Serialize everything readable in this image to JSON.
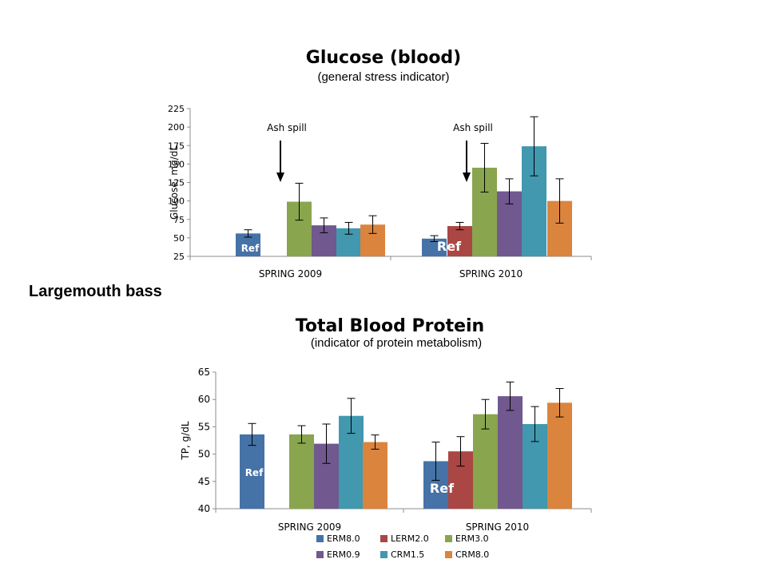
{
  "species_label": "Largemouth bass",
  "colors": {
    "ERM8.0": "#4572a7",
    "LERM2.0": "#aa4643",
    "ERM3.0": "#89a54e",
    "ERM0.9": "#71588f",
    "CRM1.5": "#4198af",
    "CRM8.0": "#db843d"
  },
  "chart_data": [
    {
      "type": "bar",
      "title": "Glucose (blood)",
      "subtitle": "(general stress indicator)",
      "ylabel": "Glucose, mg/dL",
      "xlabel": "",
      "ylim": [
        25,
        225
      ],
      "yticks": [
        25,
        50,
        75,
        100,
        125,
        150,
        175,
        200,
        225
      ],
      "grid": false,
      "categories": [
        "SPRING 2009",
        "SPRING 2010"
      ],
      "series": [
        {
          "name": "ERM8.0",
          "values": [
            56,
            49
          ],
          "errors": [
            5,
            4
          ]
        },
        {
          "name": "LERM2.0",
          "values": [
            null,
            66
          ],
          "errors": [
            null,
            5
          ]
        },
        {
          "name": "ERM3.0",
          "values": [
            99,
            145
          ],
          "errors": [
            25,
            33
          ]
        },
        {
          "name": "ERM0.9",
          "values": [
            67,
            113
          ],
          "errors": [
            10,
            17
          ]
        },
        {
          "name": "CRM1.5",
          "values": [
            63,
            174
          ],
          "errors": [
            8,
            40
          ]
        },
        {
          "name": "CRM8.0",
          "values": [
            68,
            100
          ],
          "errors": [
            12,
            30
          ]
        }
      ],
      "annotations": [
        {
          "text": "Ash spill",
          "category": "SPRING 2009"
        },
        {
          "text": "Ash spill",
          "category": "SPRING 2010"
        }
      ],
      "ref_labels": [
        "Ref",
        "Ref"
      ]
    },
    {
      "type": "bar",
      "title": "Total Blood Protein",
      "subtitle": "(indicator of protein metabolism)",
      "ylabel": "TP, g/dL",
      "xlabel": "",
      "ylim": [
        40,
        65
      ],
      "yticks": [
        40,
        45,
        50,
        55,
        60,
        65
      ],
      "grid": false,
      "categories": [
        "SPRING 2009",
        "SPRING 2010"
      ],
      "series": [
        {
          "name": "ERM8.0",
          "values": [
            53.6,
            48.7
          ],
          "errors": [
            2.0,
            3.5
          ]
        },
        {
          "name": "LERM2.0",
          "values": [
            null,
            50.5
          ],
          "errors": [
            null,
            2.7
          ]
        },
        {
          "name": "ERM3.0",
          "values": [
            53.6,
            57.3
          ],
          "errors": [
            1.6,
            2.7
          ]
        },
        {
          "name": "ERM0.9",
          "values": [
            51.9,
            60.6
          ],
          "errors": [
            3.6,
            2.6
          ]
        },
        {
          "name": "CRM1.5",
          "values": [
            57.0,
            55.5
          ],
          "errors": [
            3.2,
            3.2
          ]
        },
        {
          "name": "CRM8.0",
          "values": [
            52.2,
            59.4
          ],
          "errors": [
            1.3,
            2.6
          ]
        }
      ],
      "ref_labels": [
        "Ref",
        "Ref"
      ],
      "legend": {
        "placement": "bottom",
        "entries": [
          "ERM8.0",
          "LERM2.0",
          "ERM3.0",
          "ERM0.9",
          "CRM1.5",
          "CRM8.0"
        ]
      }
    }
  ]
}
